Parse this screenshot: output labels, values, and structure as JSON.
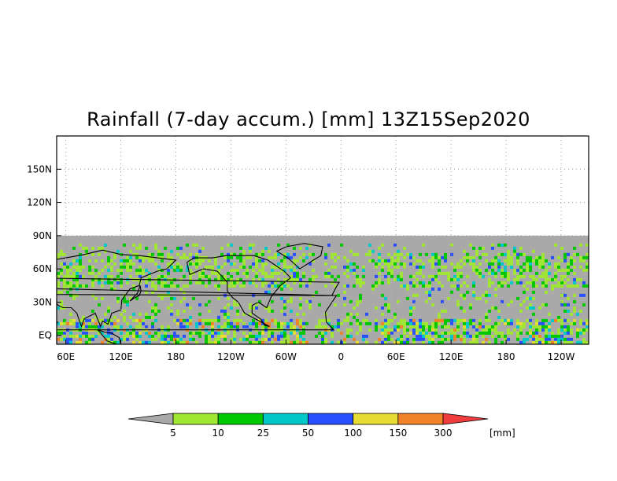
{
  "title": "Rainfall (7-day accum.) [mm] 13Z15Sep2020",
  "lat_labels": [
    "150N",
    "120N",
    "90N",
    "60N",
    "30N",
    "EQ"
  ],
  "lon_labels": [
    "60E",
    "120E",
    "180",
    "120W",
    "60W",
    "0",
    "60E",
    "120E",
    "180",
    "120W"
  ],
  "lat_values": [
    150,
    120,
    90,
    60,
    30,
    0
  ],
  "lon_values": [
    60,
    120,
    180,
    240,
    300,
    360,
    420,
    480,
    540,
    600
  ],
  "map_extent": {
    "lon_min": 50,
    "lon_max": 630,
    "lat_min": -8,
    "lat_max": 180,
    "data_lat_max": 90
  },
  "colorbar": {
    "unit": "[mm]",
    "levels": [
      "5",
      "10",
      "25",
      "50",
      "100",
      "150",
      "300"
    ],
    "colors": [
      "#a9a9a9",
      "#a0e632",
      "#00c800",
      "#00c8c8",
      "#2850ff",
      "#e6dc32",
      "#f08228",
      "#f03c3c"
    ]
  },
  "colors": {
    "no_data": "#a9a9a9",
    "frame": "#000000",
    "grid": "#9a9a9a"
  }
}
